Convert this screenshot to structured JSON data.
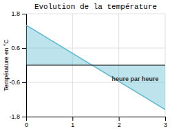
{
  "chart_data": {
    "type": "area",
    "title": "Evolution de la température",
    "y_label": "Température en °C",
    "x": [
      0,
      3
    ],
    "values": [
      1.4,
      -1.55
    ],
    "color": "#5ab8d0",
    "xlim": [
      0,
      3
    ],
    "ylim": [
      -1.8,
      1.8
    ],
    "xticks": [
      0,
      1,
      2,
      3
    ],
    "yticks": [
      -1.8,
      -0.6,
      0.6,
      1.8
    ],
    "grid": true,
    "annotations": [
      {
        "text": "heure par heure",
        "x": 1.85,
        "y": -0.55
      }
    ]
  }
}
